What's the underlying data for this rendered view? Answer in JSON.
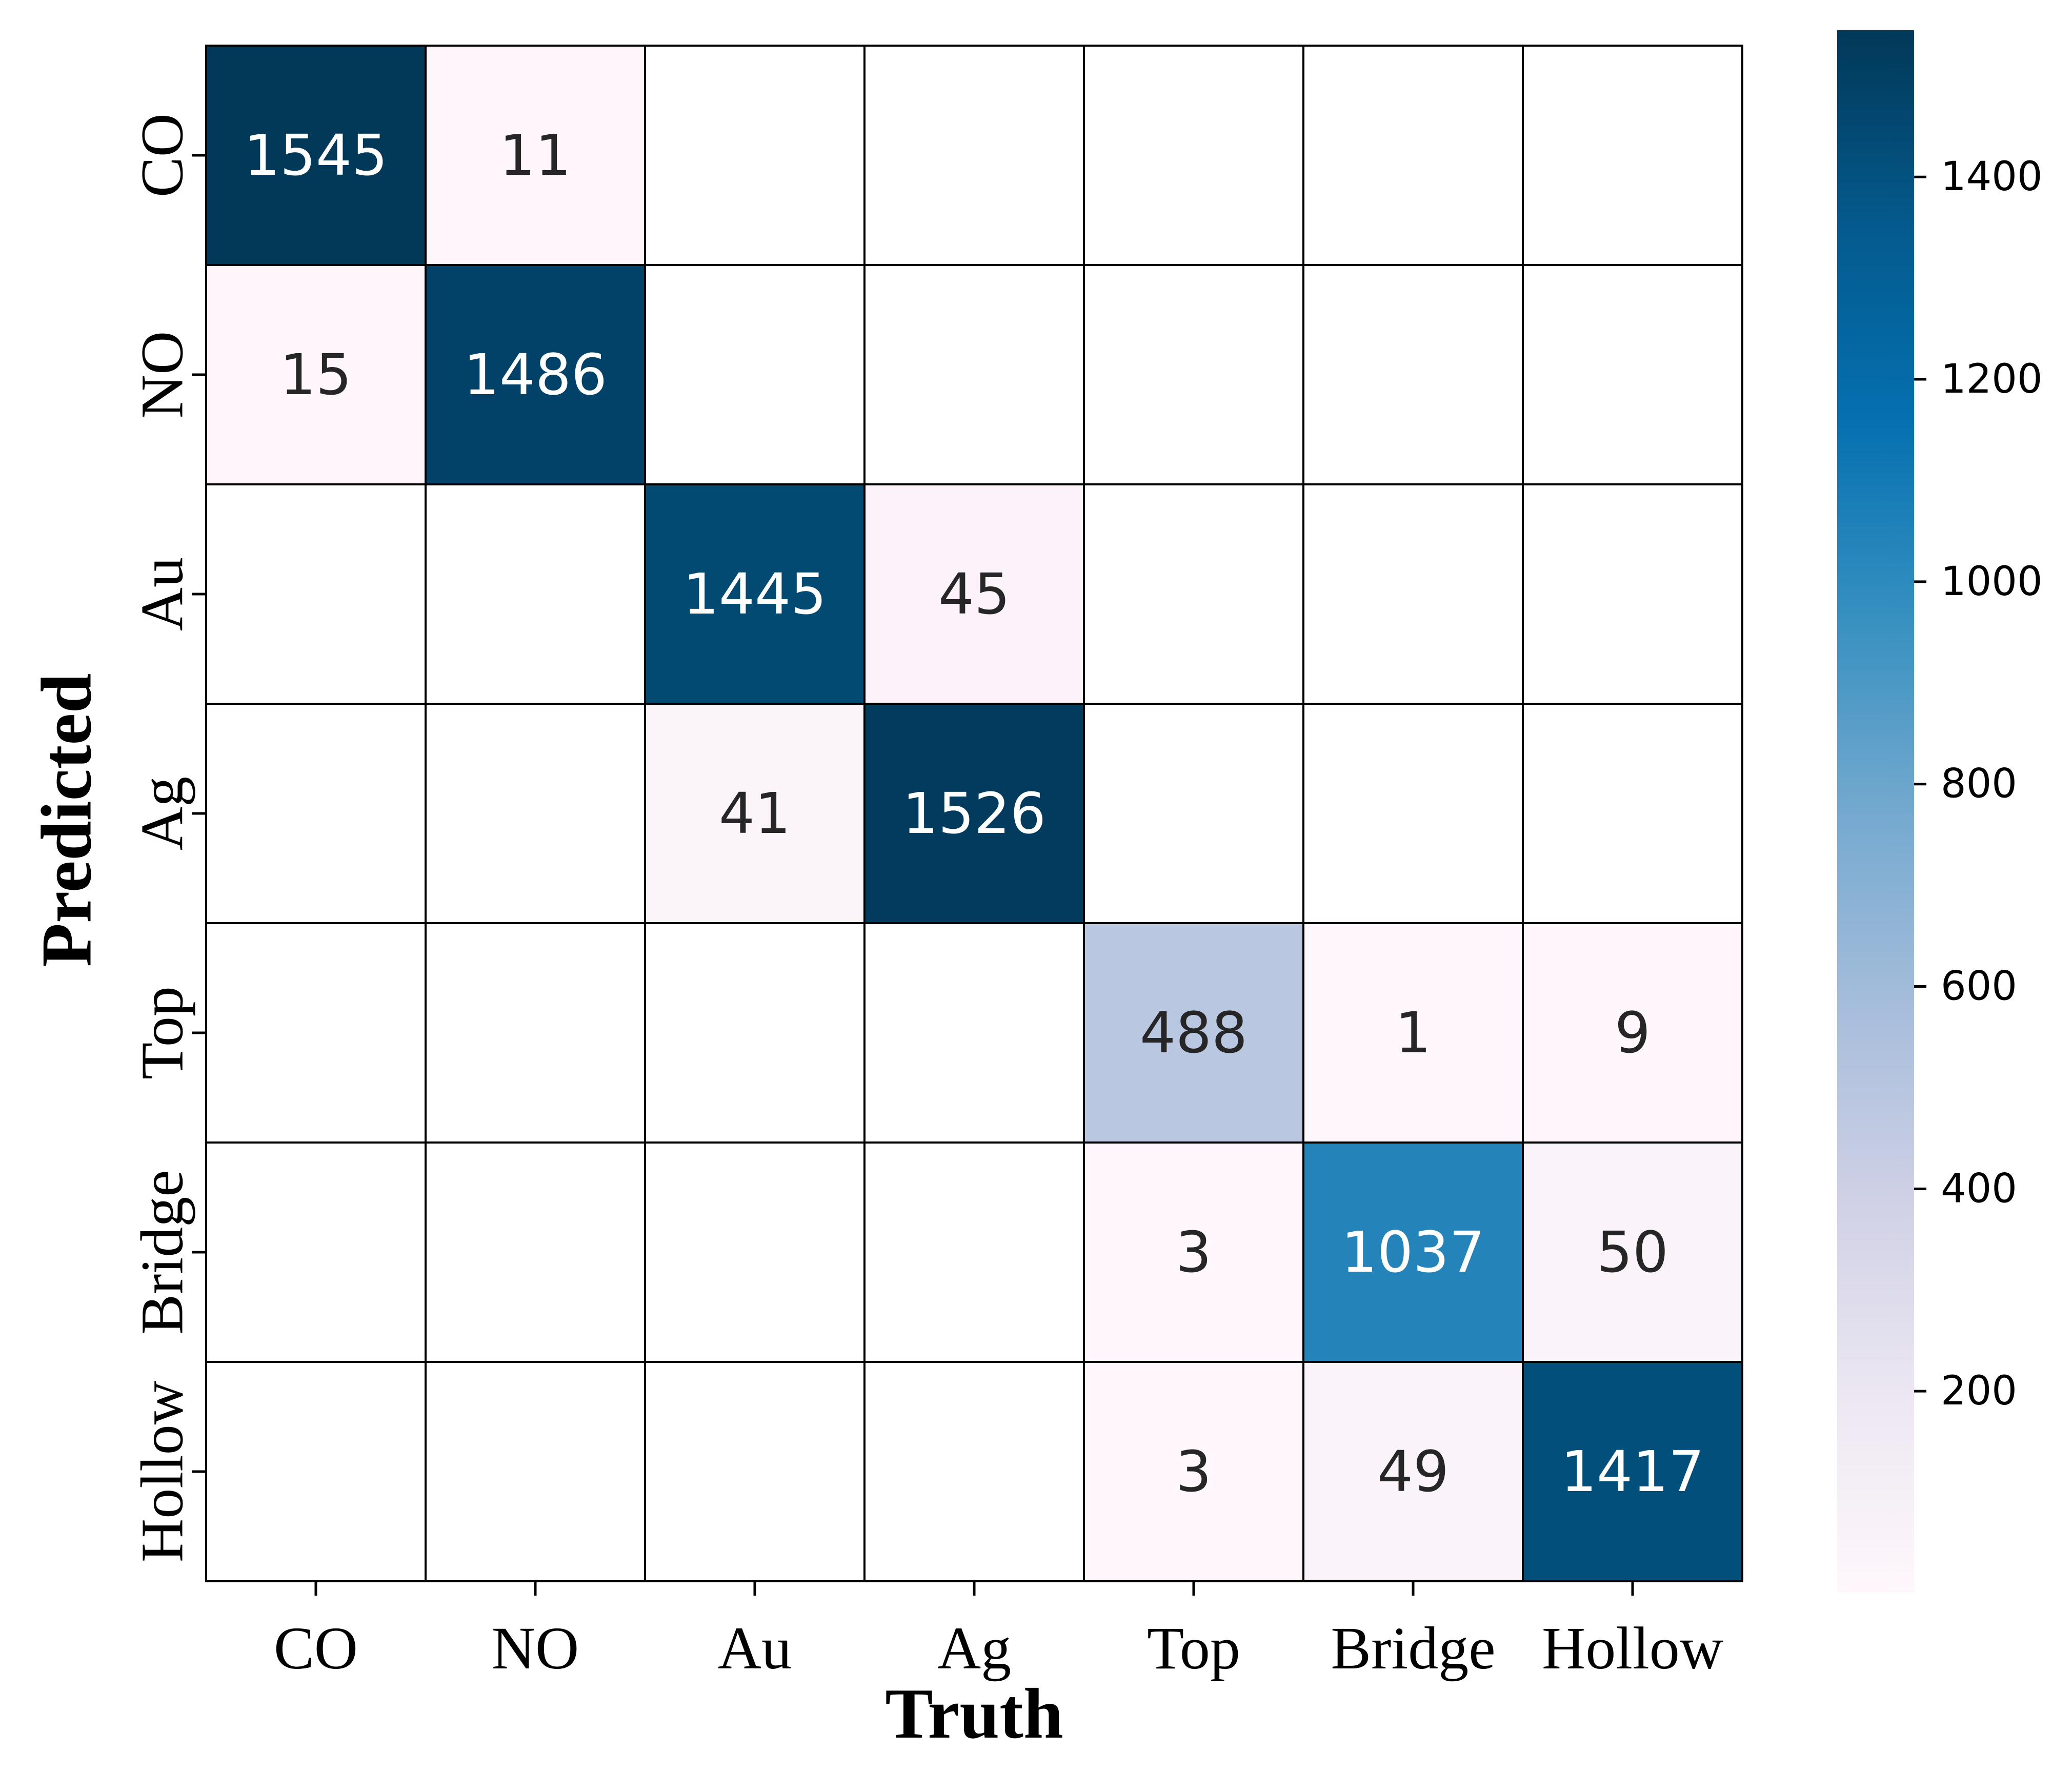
{
  "chart_data": {
    "type": "heatmap",
    "title": "",
    "xlabel": "Truth",
    "ylabel": "Predicted",
    "x_categories": [
      "CO",
      "NO",
      "Au",
      "Ag",
      "Top",
      "Bridge",
      "Hollow"
    ],
    "y_categories": [
      "CO",
      "NO",
      "Au",
      "Ag",
      "Top",
      "Bridge",
      "Hollow"
    ],
    "values": [
      [
        1545,
        11,
        null,
        null,
        null,
        null,
        null
      ],
      [
        15,
        1486,
        null,
        null,
        null,
        null,
        null
      ],
      [
        null,
        null,
        1445,
        45,
        null,
        null,
        null
      ],
      [
        null,
        null,
        41,
        1526,
        null,
        null,
        null
      ],
      [
        null,
        null,
        null,
        null,
        488,
        1,
        9
      ],
      [
        null,
        null,
        null,
        null,
        3,
        1037,
        50
      ],
      [
        null,
        null,
        null,
        null,
        3,
        49,
        1417
      ]
    ],
    "labels": [
      [
        "1545",
        "11",
        "",
        "",
        "",
        "",
        ""
      ],
      [
        "15",
        "1486",
        "",
        "",
        "",
        "",
        ""
      ],
      [
        "",
        "",
        "1445",
        "45",
        "",
        "",
        ""
      ],
      [
        "",
        "",
        "41",
        "1526",
        "",
        "",
        ""
      ],
      [
        "",
        "",
        "",
        "",
        "488",
        "1",
        "9"
      ],
      [
        "",
        "",
        "",
        "",
        "3",
        "1037",
        "50"
      ],
      [
        "",
        "",
        "",
        "",
        "3",
        "49",
        "1417"
      ]
    ],
    "colormap": "PuBu",
    "colorbar": {
      "range": [
        1,
        1545
      ],
      "ticks": [
        200,
        400,
        600,
        800,
        1000,
        1200,
        1400
      ],
      "tick_labels": [
        "200",
        "400",
        "600",
        "800",
        "1000",
        "1200",
        "1400"
      ],
      "colors": [
        "#fff7fb",
        "#ece7f2",
        "#d0d1e6",
        "#a6bddb",
        "#74a9cf",
        "#3690c0",
        "#0570b0",
        "#045a8d",
        "#023858"
      ]
    },
    "grid": true,
    "empty_cell_color": "#ffffff",
    "text_colors": {
      "dark": "#262626",
      "light": "#ffffff"
    }
  }
}
